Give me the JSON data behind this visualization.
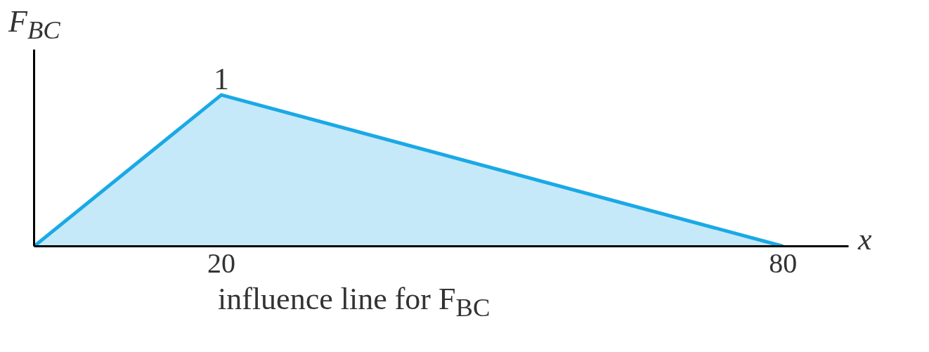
{
  "chart_data": {
    "type": "area",
    "title": "influence line for F$_{BC}$",
    "xlabel": "x",
    "ylabel": "F$_{BC}$",
    "x": [
      0,
      20,
      80
    ],
    "series": [
      {
        "color": "#1aa9e6",
        "values": [
          0,
          1,
          0
        ],
        "value_labels": [
          null,
          "1",
          null
        ]
      }
    ],
    "xlim": [
      0,
      87
    ],
    "ylim": [
      0,
      1.3
    ],
    "xticks": [
      20,
      80
    ],
    "tick_labels": "x"
  }
}
